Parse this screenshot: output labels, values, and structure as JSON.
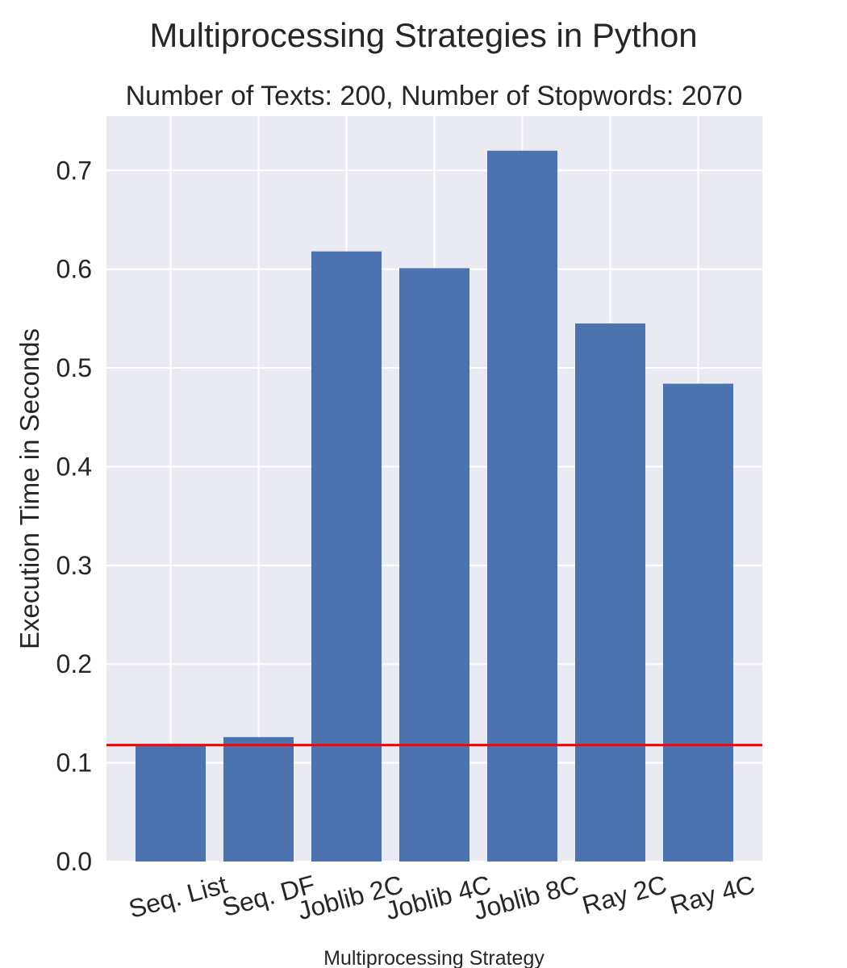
{
  "chart_data": {
    "type": "bar",
    "title": "Multiprocessing Strategies in Python",
    "subtitle": "Number of Texts: 200, Number of Stopwords: 2070",
    "xlabel": "Multiprocessing Strategy",
    "ylabel": "Execution Time in Seconds",
    "categories": [
      "Seq. List",
      "Seq. DF",
      "Joblib 2C",
      "Joblib 4C",
      "Joblib 8C",
      "Ray 2C",
      "Ray 4C"
    ],
    "values": [
      0.118,
      0.126,
      0.618,
      0.601,
      0.72,
      0.545,
      0.484
    ],
    "ylim": [
      0,
      0.755
    ],
    "yticks": [
      "0.0",
      "0.1",
      "0.2",
      "0.3",
      "0.4",
      "0.5",
      "0.6",
      "0.7"
    ],
    "reference_line": {
      "value": 0.118,
      "color": "#ff0000"
    },
    "grid": true,
    "legend": "none",
    "colors": {
      "bar": "#4c72b0",
      "plot_background": "#eaeaf2",
      "grid": "#ffffff"
    }
  }
}
